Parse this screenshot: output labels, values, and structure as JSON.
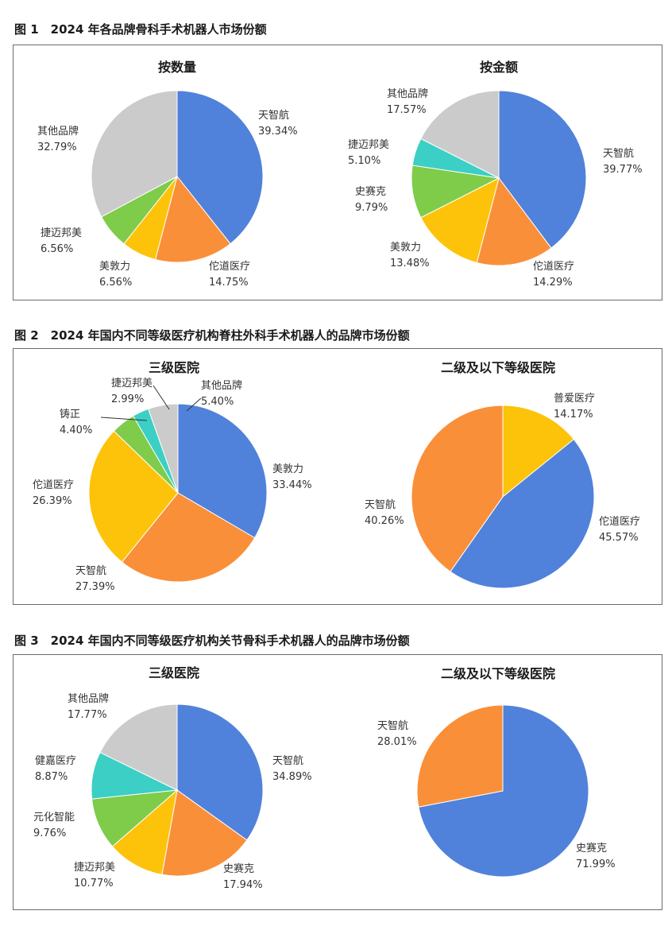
{
  "colors": {
    "天智航": "#5082DB",
    "佗道医疗": "#FA8F3A",
    "美敦力": "#FDC30A",
    "捷迈邦美": "#7FCB4A",
    "其他品牌": "#CBCBCB",
    "史赛克": "#7FCB4A",
    "铸正": "#7FCB4A",
    "元化智能": "#7FCB4A",
    "健嘉医疗": "#3CCFC5",
    "普爱医疗": "#FDC30A"
  },
  "figures": [
    {
      "caption": "图 1　2024 年各品牌骨科手术机器人市场份额",
      "chart_data": [
        {
          "type": "pie",
          "title": "按数量",
          "slices": [
            {
              "label": "天智航",
              "value": 39.34,
              "display": "39.34%",
              "color": "#5082DB"
            },
            {
              "label": "佗道医疗",
              "value": 14.75,
              "display": "14.75%",
              "color": "#FA8F3A"
            },
            {
              "label": "美敦力",
              "value": 6.56,
              "display": "6.56%",
              "color": "#FDC30A"
            },
            {
              "label": "捷迈邦美",
              "value": 6.56,
              "display": "6.56%",
              "color": "#7FCB4A"
            },
            {
              "label": "其他品牌",
              "value": 32.79,
              "display": "32.79%",
              "color": "#CBCBCB"
            }
          ]
        },
        {
          "type": "pie",
          "title": "按金额",
          "slices": [
            {
              "label": "天智航",
              "value": 39.77,
              "display": "39.77%",
              "color": "#5082DB"
            },
            {
              "label": "佗道医疗",
              "value": 14.29,
              "display": "14.29%",
              "color": "#FA8F3A"
            },
            {
              "label": "美敦力",
              "value": 13.48,
              "display": "13.48%",
              "color": "#FDC30A"
            },
            {
              "label": "史赛克",
              "value": 9.79,
              "display": "9.79%",
              "color": "#7FCB4A"
            },
            {
              "label": "捷迈邦美",
              "value": 5.1,
              "display": "5.10%",
              "color": "#3CCFC5"
            },
            {
              "label": "其他品牌",
              "value": 17.57,
              "display": "17.57%",
              "color": "#CBCBCB"
            }
          ]
        }
      ]
    },
    {
      "caption": "图 2　2024 年国内不同等级医疗机构脊柱外科手术机器人的品牌市场份额",
      "chart_data": [
        {
          "type": "pie",
          "title": "三级医院",
          "slices": [
            {
              "label": "美敦力",
              "value": 33.44,
              "display": "33.44%",
              "color": "#5082DB"
            },
            {
              "label": "天智航",
              "value": 27.39,
              "display": "27.39%",
              "color": "#FA8F3A"
            },
            {
              "label": "佗道医疗",
              "value": 26.39,
              "display": "26.39%",
              "color": "#FDC30A"
            },
            {
              "label": "铸正",
              "value": 4.4,
              "display": "4.40%",
              "color": "#7FCB4A"
            },
            {
              "label": "捷迈邦美",
              "value": 2.99,
              "display": "2.99%",
              "color": "#3CCFC5"
            },
            {
              "label": "其他品牌",
              "value": 5.4,
              "display": "5.40%",
              "color": "#CBCBCB"
            }
          ]
        },
        {
          "type": "pie",
          "title": "二级及以下等级医院",
          "slices": [
            {
              "label": "普爱医疗",
              "value": 14.17,
              "display": "14.17%",
              "color": "#FDC30A"
            },
            {
              "label": "佗道医疗",
              "value": 45.57,
              "display": "45.57%",
              "color": "#5082DB"
            },
            {
              "label": "天智航",
              "value": 40.26,
              "display": "40.26%",
              "color": "#FA8F3A"
            }
          ]
        }
      ]
    },
    {
      "caption": "图 3　2024 年国内不同等级医疗机构关节骨科手术机器人的品牌市场份额",
      "chart_data": [
        {
          "type": "pie",
          "title": "三级医院",
          "slices": [
            {
              "label": "天智航",
              "value": 34.89,
              "display": "34.89%",
              "color": "#5082DB"
            },
            {
              "label": "史赛克",
              "value": 17.94,
              "display": "17.94%",
              "color": "#FA8F3A"
            },
            {
              "label": "捷迈邦美",
              "value": 10.77,
              "display": "10.77%",
              "color": "#FDC30A"
            },
            {
              "label": "元化智能",
              "value": 9.76,
              "display": "9.76%",
              "color": "#7FCB4A"
            },
            {
              "label": "健嘉医疗",
              "value": 8.87,
              "display": "8.87%",
              "color": "#3CCFC5"
            },
            {
              "label": "其他品牌",
              "value": 17.77,
              "display": "17.77%",
              "color": "#CBCBCB"
            }
          ]
        },
        {
          "type": "pie",
          "title": "二级及以下等级医院",
          "slices": [
            {
              "label": "史赛克",
              "value": 71.99,
              "display": "71.99%",
              "color": "#5082DB"
            },
            {
              "label": "天智航",
              "value": 28.01,
              "display": "28.01%",
              "color": "#FA8F3A"
            }
          ]
        }
      ]
    }
  ]
}
